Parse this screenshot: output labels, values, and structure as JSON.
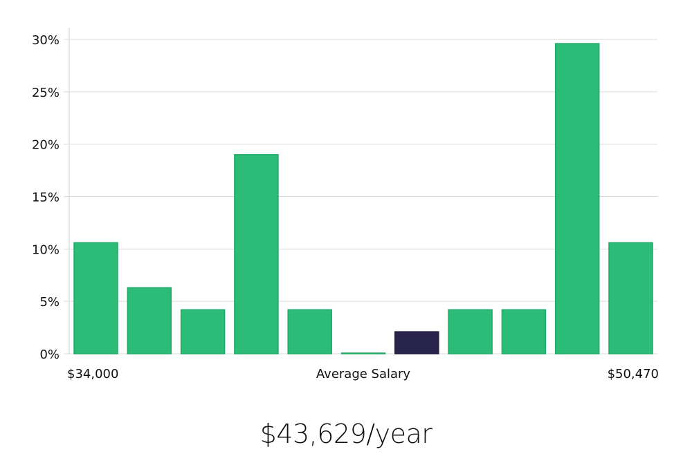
{
  "chart_data": {
    "type": "bar",
    "title": "",
    "xlabel": "Average Salary",
    "ylabel": "",
    "x_min_label": "$34,000",
    "x_max_label": "$50,470",
    "ylim": [
      0,
      30
    ],
    "yticks": [
      0,
      5,
      10,
      15,
      20,
      25,
      30
    ],
    "ytick_labels": [
      "0%",
      "5%",
      "10%",
      "15%",
      "20%",
      "25%",
      "30%"
    ],
    "values": [
      10.6,
      6.3,
      4.2,
      19.0,
      4.2,
      0.05,
      2.1,
      4.2,
      4.2,
      29.6,
      10.6
    ],
    "highlight_index": 6,
    "grid": true,
    "colors": {
      "bar": "#2bbd77",
      "bar_stroke": "#22a865",
      "highlight": "#29254a",
      "highlight_stroke": "#1e1a3c"
    }
  },
  "caption": {
    "salary": "$43,629/year"
  }
}
